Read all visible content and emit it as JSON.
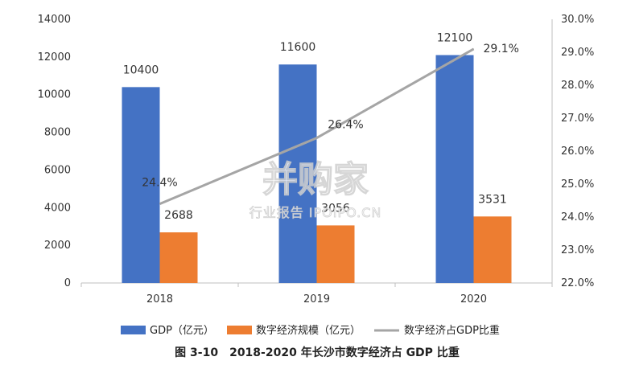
{
  "chart_data": {
    "type": "bar",
    "categories": [
      "2018",
      "2019",
      "2020"
    ],
    "series": [
      {
        "name": "GDP（亿元）",
        "kind": "bar",
        "axis": "left",
        "color": "#4472C4",
        "values": [
          10400,
          11600,
          12100
        ]
      },
      {
        "name": "数字经济规模（亿元）",
        "kind": "bar",
        "axis": "left",
        "color": "#ED7D31",
        "values": [
          2688,
          3056,
          3531
        ]
      },
      {
        "name": "数字经济占GDP比重",
        "kind": "line",
        "axis": "right",
        "color": "#A5A5A5",
        "values": [
          24.4,
          26.4,
          29.1
        ]
      }
    ],
    "data_labels": {
      "gdp": [
        "10400",
        "11600",
        "12100"
      ],
      "digital": [
        "2688",
        "3056",
        "3531"
      ],
      "share": [
        "24.4%",
        "26.4%",
        "29.1%"
      ]
    },
    "left_axis": {
      "ylim": [
        0,
        14000
      ],
      "ticks": [
        "0",
        "2000",
        "4000",
        "6000",
        "8000",
        "10000",
        "12000",
        "14000"
      ]
    },
    "right_axis": {
      "ylim": [
        22.0,
        30.0
      ],
      "ticks": [
        "22.0%",
        "23.0%",
        "24.0%",
        "25.0%",
        "26.0%",
        "27.0%",
        "28.0%",
        "29.0%",
        "30.0%"
      ]
    },
    "grid": false,
    "legend_position": "bottom",
    "caption": "图 3-10　2018-2020 年长沙市数字经济占 GDP 比重"
  },
  "watermark": {
    "brand": "并购家",
    "sub": "行业报告 IPOIPO.CN"
  }
}
